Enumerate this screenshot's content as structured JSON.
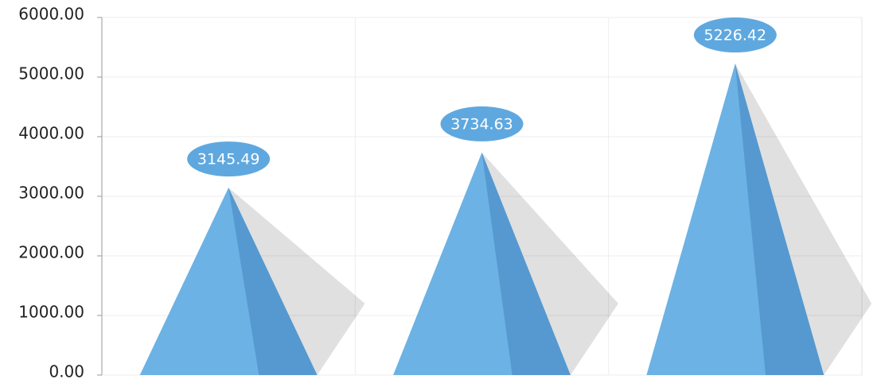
{
  "chart_data": {
    "type": "pyramid",
    "categories": [
      null,
      null,
      null
    ],
    "values": [
      3145.49,
      3734.63,
      5226.42
    ],
    "color": "#6cb2e4",
    "ylim": [
      0,
      6000
    ],
    "yticks": [
      {
        "value": 0,
        "label": "0.00"
      },
      {
        "value": 1000,
        "label": "1000.00"
      },
      {
        "value": 2000,
        "label": "2000.00"
      },
      {
        "value": 3000,
        "label": "3000.00"
      },
      {
        "value": 4000,
        "label": "4000.00"
      },
      {
        "value": 5000,
        "label": "5000.00"
      },
      {
        "value": 6000,
        "label": "6000.00"
      }
    ],
    "grid": true
  }
}
